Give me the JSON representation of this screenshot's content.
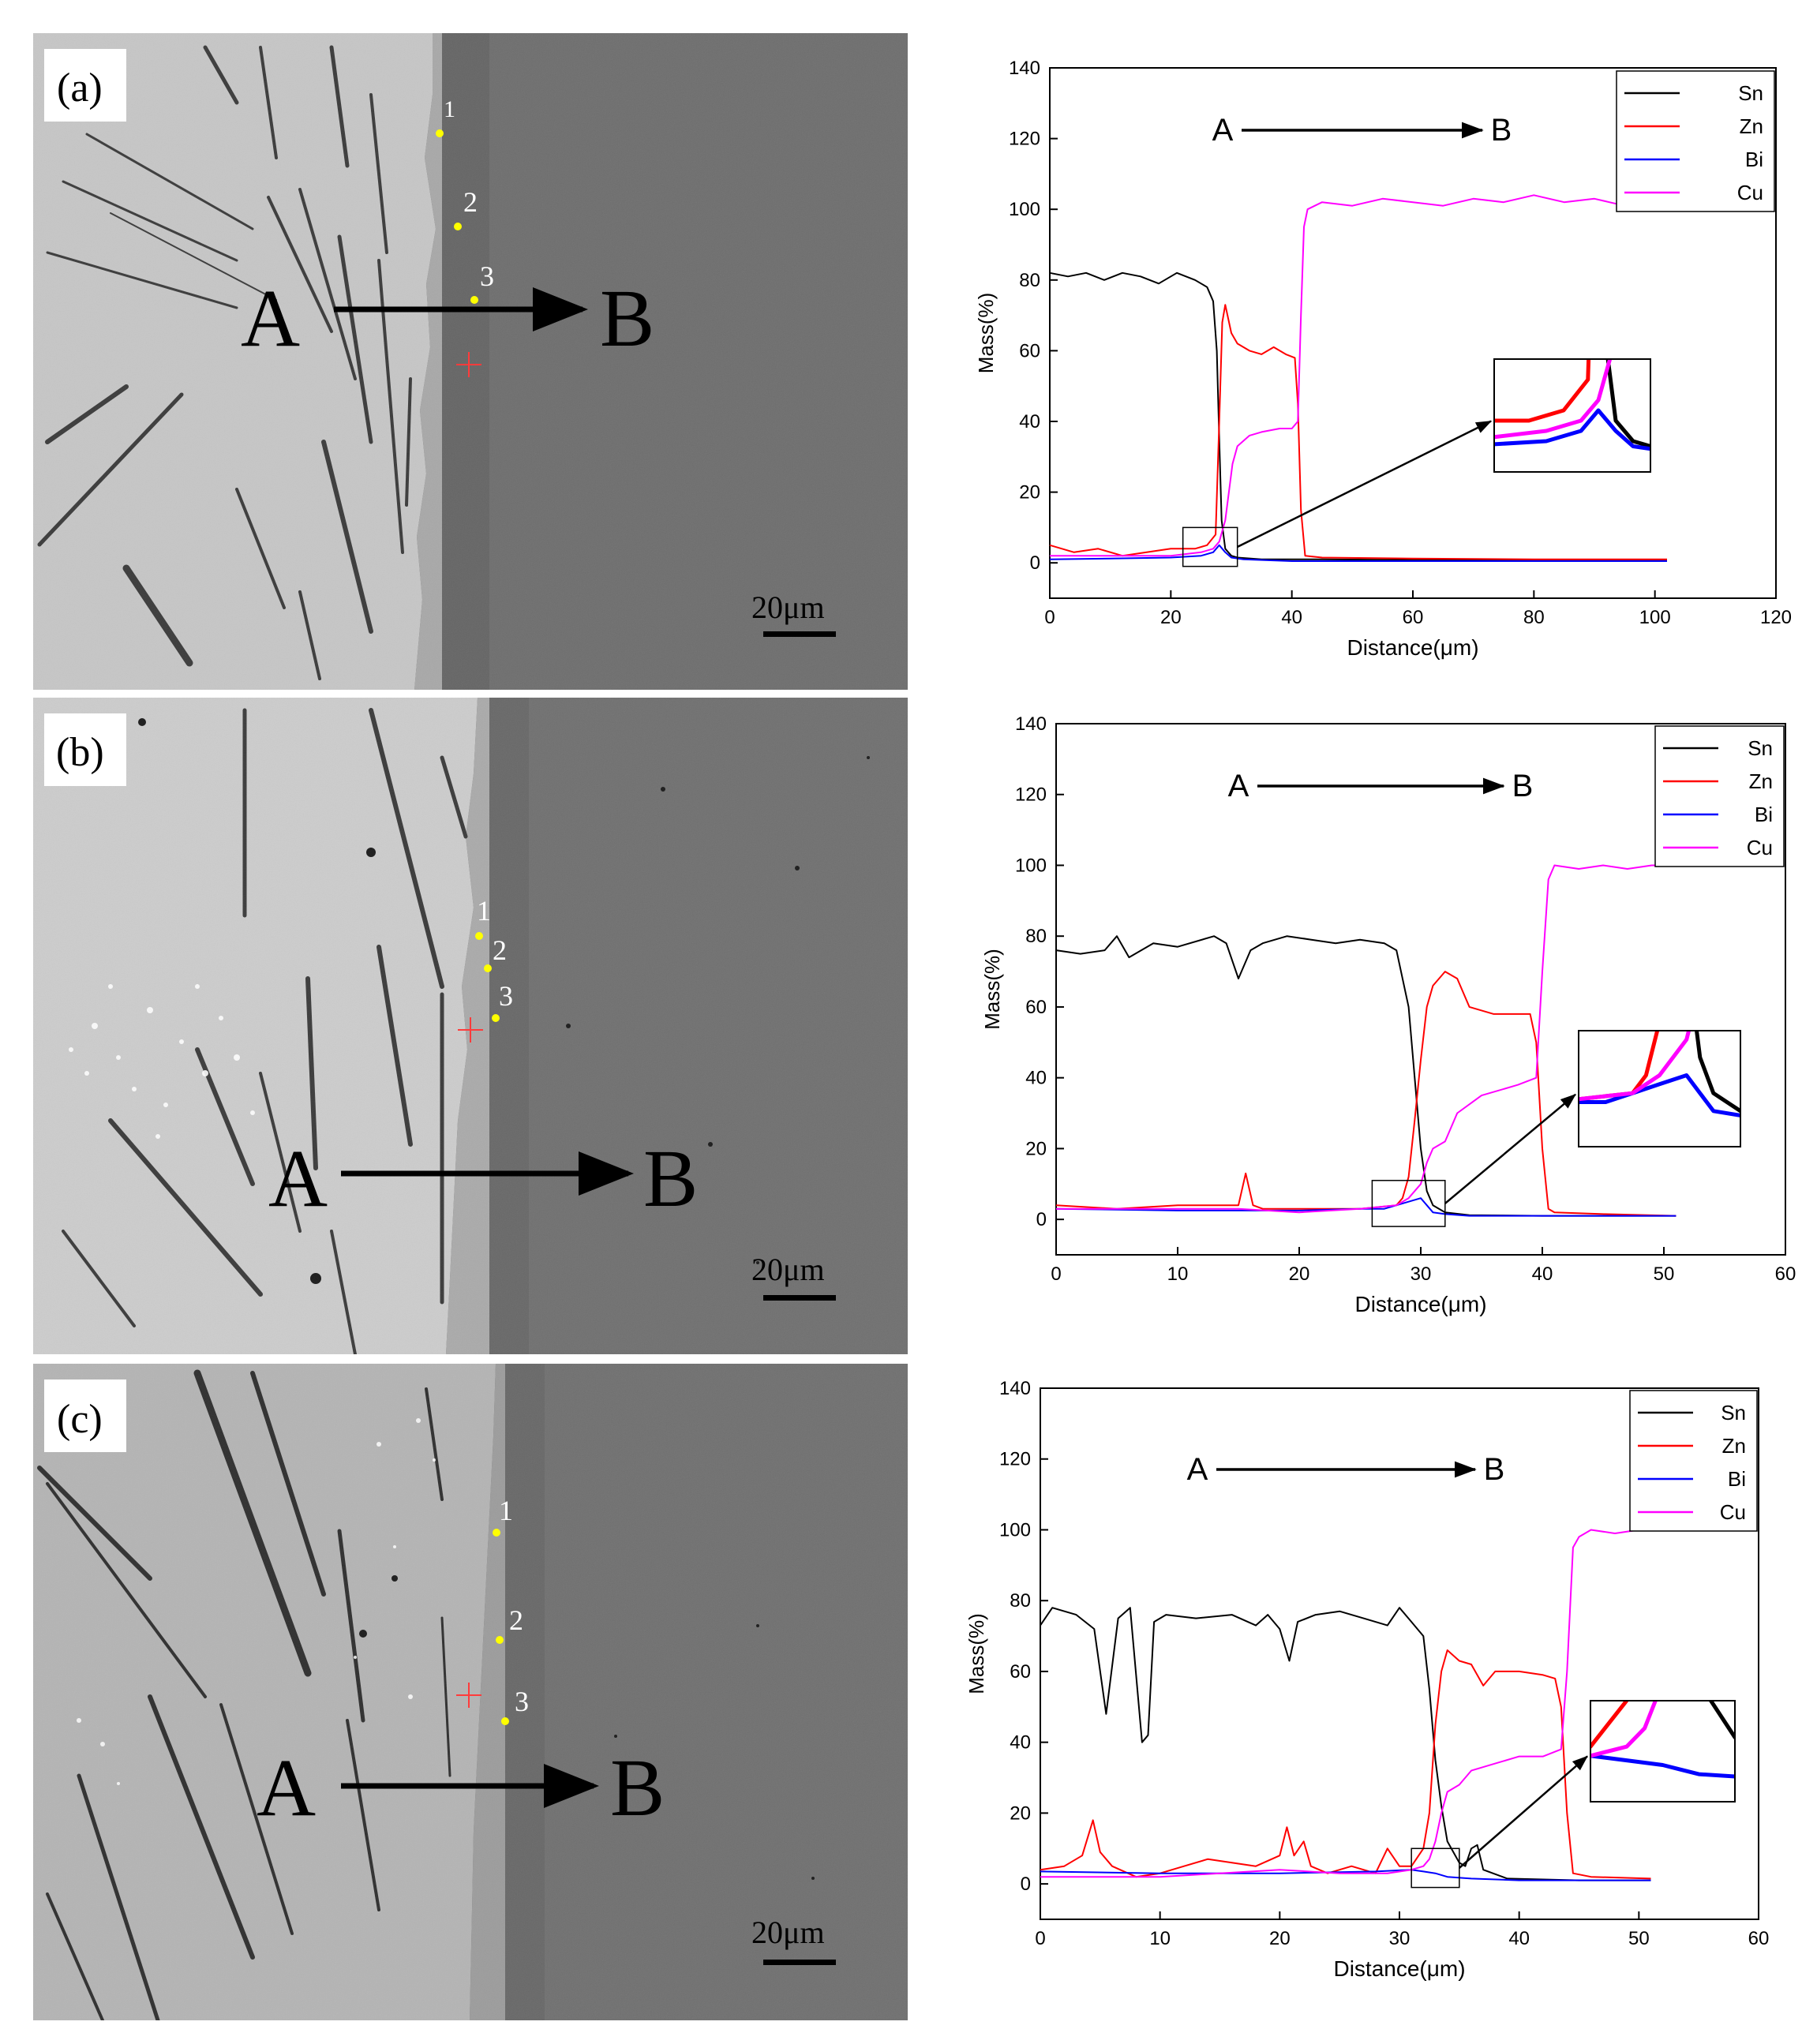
{
  "figure": {
    "panels": [
      {
        "label": "(a)",
        "points": [
          "1",
          "2",
          "3"
        ],
        "start_label": "A",
        "end_label": "B",
        "scale_bar": "20μm"
      },
      {
        "label": "(b)",
        "points": [
          "1",
          "2",
          "3"
        ],
        "start_label": "A",
        "end_label": "B",
        "scale_bar": "20μm"
      },
      {
        "label": "(c)",
        "points": [
          "1",
          "2",
          "3"
        ],
        "start_label": "A",
        "end_label": "B",
        "scale_bar": "20μm"
      }
    ]
  },
  "chart_data": [
    {
      "type": "line",
      "xlabel": "Distance(μm)",
      "ylabel": "Mass(%)",
      "xlim": [
        0,
        120
      ],
      "ylim": [
        -10,
        140
      ],
      "xticks": [
        0,
        20,
        40,
        60,
        80,
        100,
        120
      ],
      "yticks": [
        0,
        20,
        40,
        60,
        80,
        100,
        120,
        140
      ],
      "annotation": {
        "start": "A",
        "end": "B"
      },
      "inset_region": {
        "x": [
          22,
          31
        ],
        "y": [
          -1,
          10
        ]
      },
      "series": [
        {
          "name": "Sn",
          "color": "#000000",
          "x": [
            0,
            3,
            6,
            9,
            12,
            15,
            18,
            21,
            24,
            26,
            27,
            27.6,
            28,
            28.4,
            29,
            30,
            31,
            35,
            45,
            60,
            80,
            102
          ],
          "y": [
            82,
            81,
            82,
            80,
            82,
            81,
            79,
            82,
            80,
            78,
            74,
            60,
            35,
            12,
            4,
            2,
            1.5,
            1,
            1,
            0.8,
            0.8,
            0.8
          ]
        },
        {
          "name": "Zn",
          "color": "#ff0000",
          "x": [
            0,
            4,
            8,
            12,
            16,
            20,
            24,
            26,
            27.4,
            28,
            28.5,
            29,
            30,
            31,
            33,
            35,
            37,
            39,
            40.5,
            41,
            41.5,
            42.2,
            45,
            60,
            80,
            102
          ],
          "y": [
            5,
            3,
            4,
            2,
            3,
            4,
            4,
            5,
            8,
            40,
            68,
            73,
            65,
            62,
            60,
            59,
            61,
            59,
            58,
            45,
            15,
            2,
            1.5,
            1.2,
            1,
            1
          ]
        },
        {
          "name": "Bi",
          "color": "#0000ff",
          "x": [
            0,
            10,
            20,
            25,
            27,
            28,
            29,
            30,
            32,
            40,
            60,
            80,
            102
          ],
          "y": [
            1,
            1.2,
            1.5,
            2,
            3,
            5,
            3,
            1.5,
            1,
            0.5,
            0.5,
            0.5,
            0.5
          ]
        },
        {
          "name": "Cu",
          "color": "#ff00ff",
          "x": [
            0,
            10,
            20,
            25,
            27,
            28,
            29,
            29.6,
            30.2,
            31,
            33,
            35,
            38,
            40,
            41,
            41.5,
            42,
            42.6,
            45,
            50,
            55,
            60,
            65,
            70,
            75,
            80,
            85,
            90,
            95,
            100,
            102
          ],
          "y": [
            2,
            2,
            2,
            3,
            4,
            6,
            12,
            20,
            28,
            33,
            36,
            37,
            38,
            38,
            40,
            70,
            95,
            100,
            102,
            101,
            103,
            102,
            101,
            103,
            102,
            104,
            102,
            103,
            101,
            102,
            102
          ]
        }
      ]
    },
    {
      "type": "line",
      "xlabel": "Distance(μm)",
      "ylabel": "Mass(%)",
      "xlim": [
        0,
        60
      ],
      "ylim": [
        -10,
        140
      ],
      "xticks": [
        0,
        10,
        20,
        30,
        40,
        50,
        60
      ],
      "yticks": [
        0,
        20,
        40,
        60,
        80,
        100,
        120,
        140
      ],
      "annotation": {
        "start": "A",
        "end": "B"
      },
      "inset_region": {
        "x": [
          26,
          32
        ],
        "y": [
          -2,
          11
        ]
      },
      "series": [
        {
          "name": "Sn",
          "color": "#000000",
          "x": [
            0,
            2,
            4,
            5,
            6,
            8,
            10,
            13,
            14,
            15,
            16,
            17,
            19,
            21,
            23,
            25,
            27,
            28,
            29,
            29.5,
            30,
            30.5,
            31,
            32,
            34,
            40,
            51
          ],
          "y": [
            76,
            75,
            76,
            80,
            74,
            78,
            77,
            80,
            78,
            68,
            76,
            78,
            80,
            79,
            78,
            79,
            78,
            76,
            60,
            40,
            20,
            8,
            4,
            2,
            1.2,
            1,
            1
          ]
        },
        {
          "name": "Zn",
          "color": "#ff0000",
          "x": [
            0,
            5,
            10,
            15,
            15.6,
            16.2,
            17,
            20,
            25,
            28,
            28.5,
            29,
            29.5,
            30,
            30.5,
            31,
            32,
            33,
            34,
            36,
            38,
            39,
            39.5,
            40,
            40.5,
            41,
            45,
            51
          ],
          "y": [
            4,
            3,
            4,
            4,
            13,
            4,
            3,
            3,
            3,
            4,
            6,
            12,
            28,
            45,
            60,
            66,
            70,
            68,
            60,
            58,
            58,
            58,
            50,
            20,
            3,
            2,
            1.5,
            1
          ]
        },
        {
          "name": "Bi",
          "color": "#0000ff",
          "x": [
            0,
            10,
            20,
            25,
            27,
            28,
            29,
            30,
            30.5,
            31,
            32,
            34,
            40,
            51
          ],
          "y": [
            3,
            2.5,
            2.5,
            3,
            3,
            4,
            5,
            6,
            4,
            2,
            1.5,
            1,
            1,
            1
          ]
        },
        {
          "name": "Cu",
          "color": "#ff00ff",
          "x": [
            0,
            5,
            10,
            15,
            20,
            25,
            28,
            29,
            30,
            30.5,
            31,
            32,
            33,
            35,
            38,
            39.5,
            40,
            40.5,
            41,
            43,
            45,
            47,
            49,
            51
          ],
          "y": [
            3,
            3,
            3,
            3,
            2,
            3,
            4,
            6,
            10,
            16,
            20,
            22,
            30,
            35,
            38,
            40,
            70,
            96,
            100,
            99,
            100,
            99,
            100,
            100
          ]
        }
      ]
    },
    {
      "type": "line",
      "xlabel": "Distance(μm)",
      "ylabel": "Mass(%)",
      "xlim": [
        0,
        60
      ],
      "ylim": [
        -10,
        140
      ],
      "xticks": [
        0,
        10,
        20,
        30,
        40,
        50,
        60
      ],
      "yticks": [
        0,
        20,
        40,
        60,
        80,
        100,
        120,
        140
      ],
      "annotation": {
        "start": "A",
        "end": "B"
      },
      "inset_region": {
        "x": [
          31,
          35
        ],
        "y": [
          -1,
          10
        ]
      },
      "series": [
        {
          "name": "Sn",
          "color": "#000000",
          "x": [
            0,
            1,
            3,
            4.5,
            5.5,
            6.5,
            7.5,
            8.5,
            9,
            9.5,
            10.5,
            13,
            16,
            18,
            19,
            20,
            20.8,
            21.5,
            23,
            25,
            27,
            29,
            30,
            31,
            32,
            32.5,
            33,
            33.5,
            34,
            35,
            35.5,
            36,
            36.5,
            37,
            39,
            45,
            51
          ],
          "y": [
            73,
            78,
            76,
            72,
            48,
            75,
            78,
            40,
            42,
            74,
            76,
            75,
            76,
            73,
            76,
            72,
            63,
            74,
            76,
            77,
            75,
            73,
            78,
            74,
            70,
            55,
            35,
            22,
            12,
            6,
            5,
            10,
            11,
            4,
            1.5,
            1,
            1
          ]
        },
        {
          "name": "Zn",
          "color": "#ff0000",
          "x": [
            0,
            2,
            3.5,
            4.4,
            5,
            6,
            8,
            10,
            12,
            14,
            16,
            18,
            20,
            20.6,
            21.2,
            22,
            22.6,
            24,
            26,
            28,
            29,
            30,
            31,
            32,
            32.5,
            33,
            33.5,
            34,
            35,
            36,
            37,
            38,
            40,
            42,
            43,
            43.5,
            44,
            44.5,
            46,
            51
          ],
          "y": [
            4,
            5,
            8,
            18,
            9,
            5,
            2,
            3,
            5,
            7,
            6,
            5,
            8,
            16,
            8,
            12,
            5,
            3,
            5,
            3,
            10,
            5,
            5,
            10,
            20,
            45,
            60,
            66,
            63,
            62,
            56,
            60,
            60,
            59,
            58,
            50,
            20,
            3,
            2,
            1.5
          ]
        },
        {
          "name": "Bi",
          "color": "#0000ff",
          "x": [
            0,
            10,
            20,
            28,
            31,
            32,
            33,
            33.5,
            34,
            36,
            40,
            51
          ],
          "y": [
            3.5,
            3,
            3,
            3.5,
            4,
            3.5,
            3,
            2.5,
            2,
            1.5,
            1,
            1
          ]
        },
        {
          "name": "Cu",
          "color": "#ff00ff",
          "x": [
            0,
            5,
            10,
            15,
            20,
            25,
            29,
            31,
            32,
            32.5,
            33,
            33.5,
            34,
            35,
            36,
            38,
            40,
            42,
            43.5,
            44,
            44.5,
            45,
            46,
            48,
            50,
            51
          ],
          "y": [
            2,
            2,
            2,
            3,
            4,
            3,
            3,
            4,
            5,
            7,
            12,
            20,
            26,
            28,
            32,
            34,
            36,
            36,
            38,
            60,
            95,
            98,
            100,
            99,
            100,
            100
          ]
        }
      ]
    }
  ]
}
